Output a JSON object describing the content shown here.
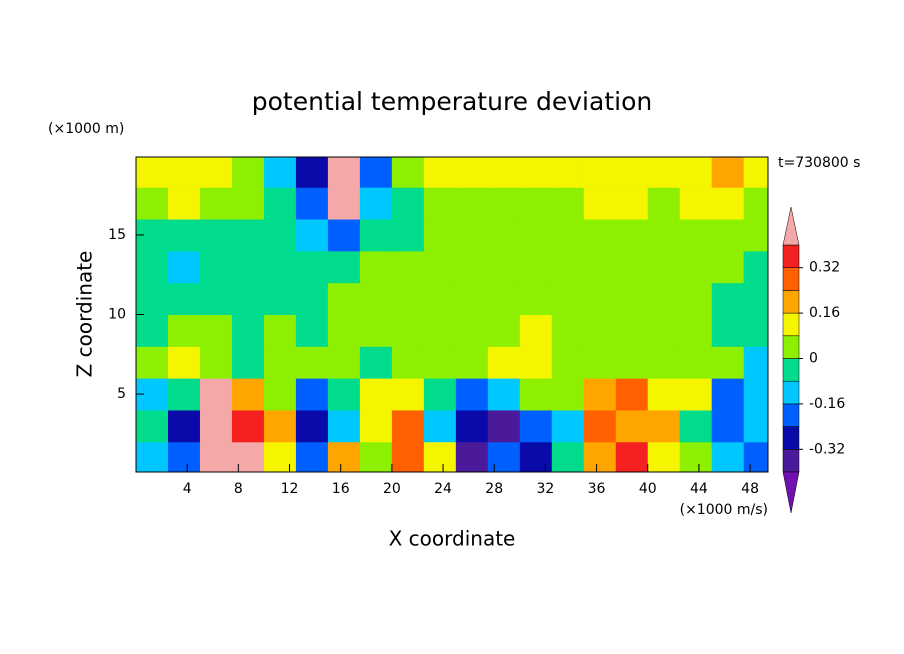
{
  "chart_data": {
    "type": "contour",
    "title": "potential temperature deviation",
    "x_label": "X coordinate",
    "y_label": "Z coordinate",
    "x_unit": "(×1000 m/s)",
    "y_unit": "(×1000 m)",
    "time_label": "t=730800 s",
    "xlim": [
      0,
      49.4
    ],
    "ylim": [
      0.1,
      19.9
    ],
    "xticks": [
      4,
      8,
      12,
      16,
      20,
      24,
      28,
      32,
      36,
      40,
      44,
      48
    ],
    "yticks": [
      5,
      10,
      15
    ],
    "x": [
      1.25,
      3.75,
      6.25,
      8.75,
      11.25,
      13.75,
      16.25,
      18.75,
      21.25,
      23.75,
      26.25,
      28.75,
      31.25,
      33.75,
      36.25,
      38.75,
      41.25,
      43.75,
      46.25,
      48.75
    ],
    "y": [
      1,
      3,
      5,
      7,
      9,
      11,
      13,
      15,
      17,
      19
    ],
    "z": [
      [
        -0.12,
        -0.2,
        0.45,
        0.45,
        0.12,
        -0.2,
        0.2,
        0.04,
        0.28,
        0.12,
        -0.36,
        -0.2,
        -0.28,
        -0.04,
        0.2,
        0.36,
        0.12,
        0.04,
        -0.12,
        -0.2
      ],
      [
        -0.04,
        -0.28,
        0.45,
        0.36,
        0.2,
        -0.28,
        -0.12,
        0.12,
        0.28,
        -0.12,
        -0.28,
        -0.36,
        -0.2,
        -0.12,
        0.28,
        0.2,
        0.2,
        -0.04,
        -0.2,
        -0.12
      ],
      [
        -0.12,
        -0.04,
        0.45,
        0.2,
        0.04,
        -0.2,
        -0.04,
        0.12,
        0.12,
        -0.04,
        -0.2,
        -0.12,
        0.04,
        0.04,
        0.2,
        0.28,
        0.12,
        0.12,
        -0.2,
        -0.12
      ],
      [
        0.04,
        0.12,
        0.04,
        -0.04,
        0.04,
        0.04,
        0.04,
        -0.04,
        0.04,
        0.04,
        0.04,
        0.12,
        0.12,
        0.04,
        0.04,
        0.04,
        0.04,
        0.04,
        0.04,
        -0.12
      ],
      [
        -0.04,
        0.04,
        0.04,
        -0.04,
        0.04,
        -0.04,
        0.04,
        0.04,
        0.04,
        0.04,
        0.04,
        0.04,
        0.12,
        0.04,
        0.04,
        0.04,
        0.04,
        0.04,
        -0.04,
        -0.04
      ],
      [
        -0.04,
        -0.04,
        -0.04,
        -0.04,
        -0.04,
        -0.04,
        0.04,
        0.04,
        0.04,
        0.04,
        0.04,
        0.04,
        0.04,
        0.04,
        0.04,
        0.04,
        0.04,
        0.04,
        -0.04,
        -0.04
      ],
      [
        -0.04,
        -0.12,
        -0.04,
        -0.04,
        -0.04,
        -0.04,
        -0.04,
        0.04,
        0.04,
        0.04,
        0.04,
        0.04,
        0.04,
        0.04,
        0.04,
        0.04,
        0.04,
        0.04,
        0.04,
        -0.04
      ],
      [
        -0.04,
        -0.04,
        -0.04,
        -0.04,
        -0.04,
        -0.12,
        -0.2,
        -0.04,
        -0.04,
        0.04,
        0.04,
        0.04,
        0.04,
        0.04,
        0.04,
        0.04,
        0.04,
        0.04,
        0.04,
        0.04
      ],
      [
        0.04,
        0.12,
        0.04,
        0.04,
        -0.04,
        -0.2,
        0.45,
        -0.12,
        -0.04,
        0.04,
        0.04,
        0.04,
        0.04,
        0.04,
        0.12,
        0.12,
        0.04,
        0.12,
        0.12,
        0.04
      ],
      [
        0.12,
        0.12,
        0.12,
        0.04,
        -0.12,
        -0.28,
        0.45,
        -0.2,
        0.04,
        0.12,
        0.12,
        0.12,
        0.12,
        0.12,
        0.12,
        0.12,
        0.12,
        0.12,
        0.2,
        0.12
      ]
    ],
    "levels": [
      -0.4,
      -0.32,
      -0.24,
      -0.16,
      -0.08,
      0,
      0.08,
      0.16,
      0.24,
      0.32,
      0.4
    ],
    "colors": [
      "#7010b0",
      "#4a1a9a",
      "#0a0aa8",
      "#0060ff",
      "#00c8ff",
      "#00dc8c",
      "#8cf000",
      "#f5f500",
      "#ffa500",
      "#ff6000",
      "#f52020",
      "#f5a8a8"
    ],
    "colorbar_ticks": [
      -0.32,
      -0.16,
      0,
      0.16,
      0.32
    ]
  }
}
